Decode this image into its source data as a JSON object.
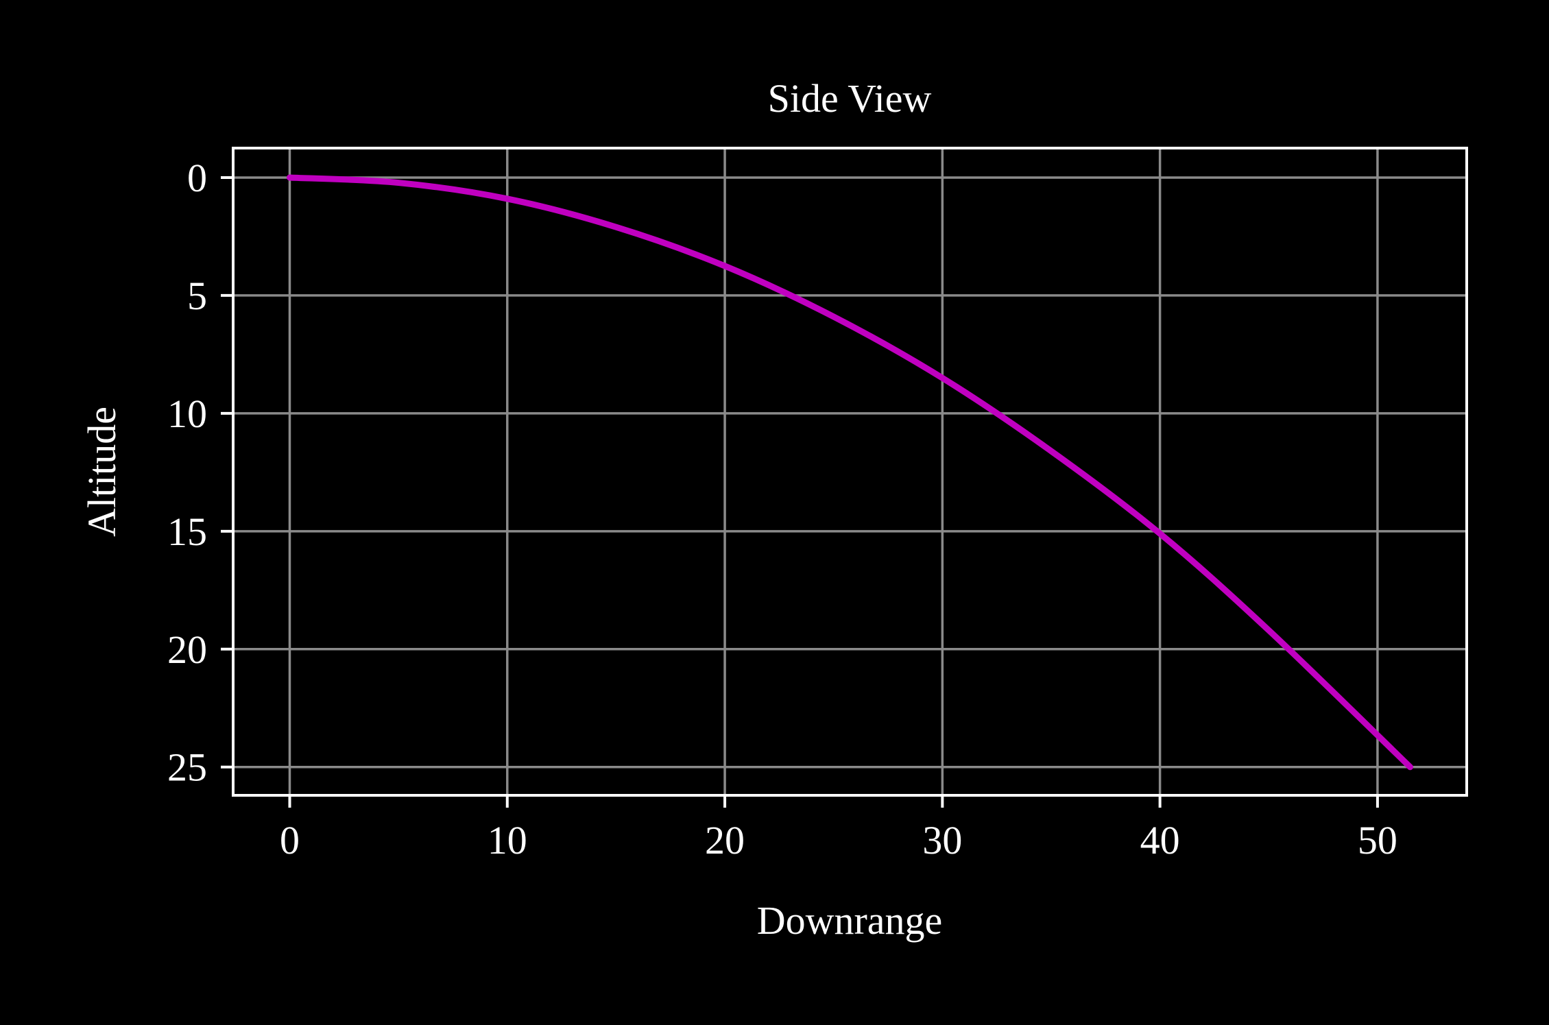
{
  "colors": {
    "background": "#000000",
    "axes": "#ffffff",
    "grid": "#8a8a8a",
    "series": "#c000c0"
  },
  "chart_data": {
    "type": "line",
    "title": "Side View",
    "xlabel": "Downrange",
    "ylabel": "Altitude",
    "xlim": [
      -2.6,
      54.1
    ],
    "ylim": [
      26.2,
      -1.25
    ],
    "y_inverted": true,
    "grid": true,
    "xticks": [
      0,
      10,
      20,
      30,
      40,
      50
    ],
    "yticks": [
      0,
      5,
      10,
      15,
      20,
      25
    ],
    "series": [
      {
        "x": [
          0,
          5,
          10,
          15,
          20,
          25,
          30,
          35,
          40,
          45,
          51.5
        ],
        "y": [
          0,
          0.22,
          0.9,
          2.1,
          3.75,
          5.9,
          8.5,
          11.6,
          15.1,
          19.2,
          25
        ]
      }
    ]
  }
}
